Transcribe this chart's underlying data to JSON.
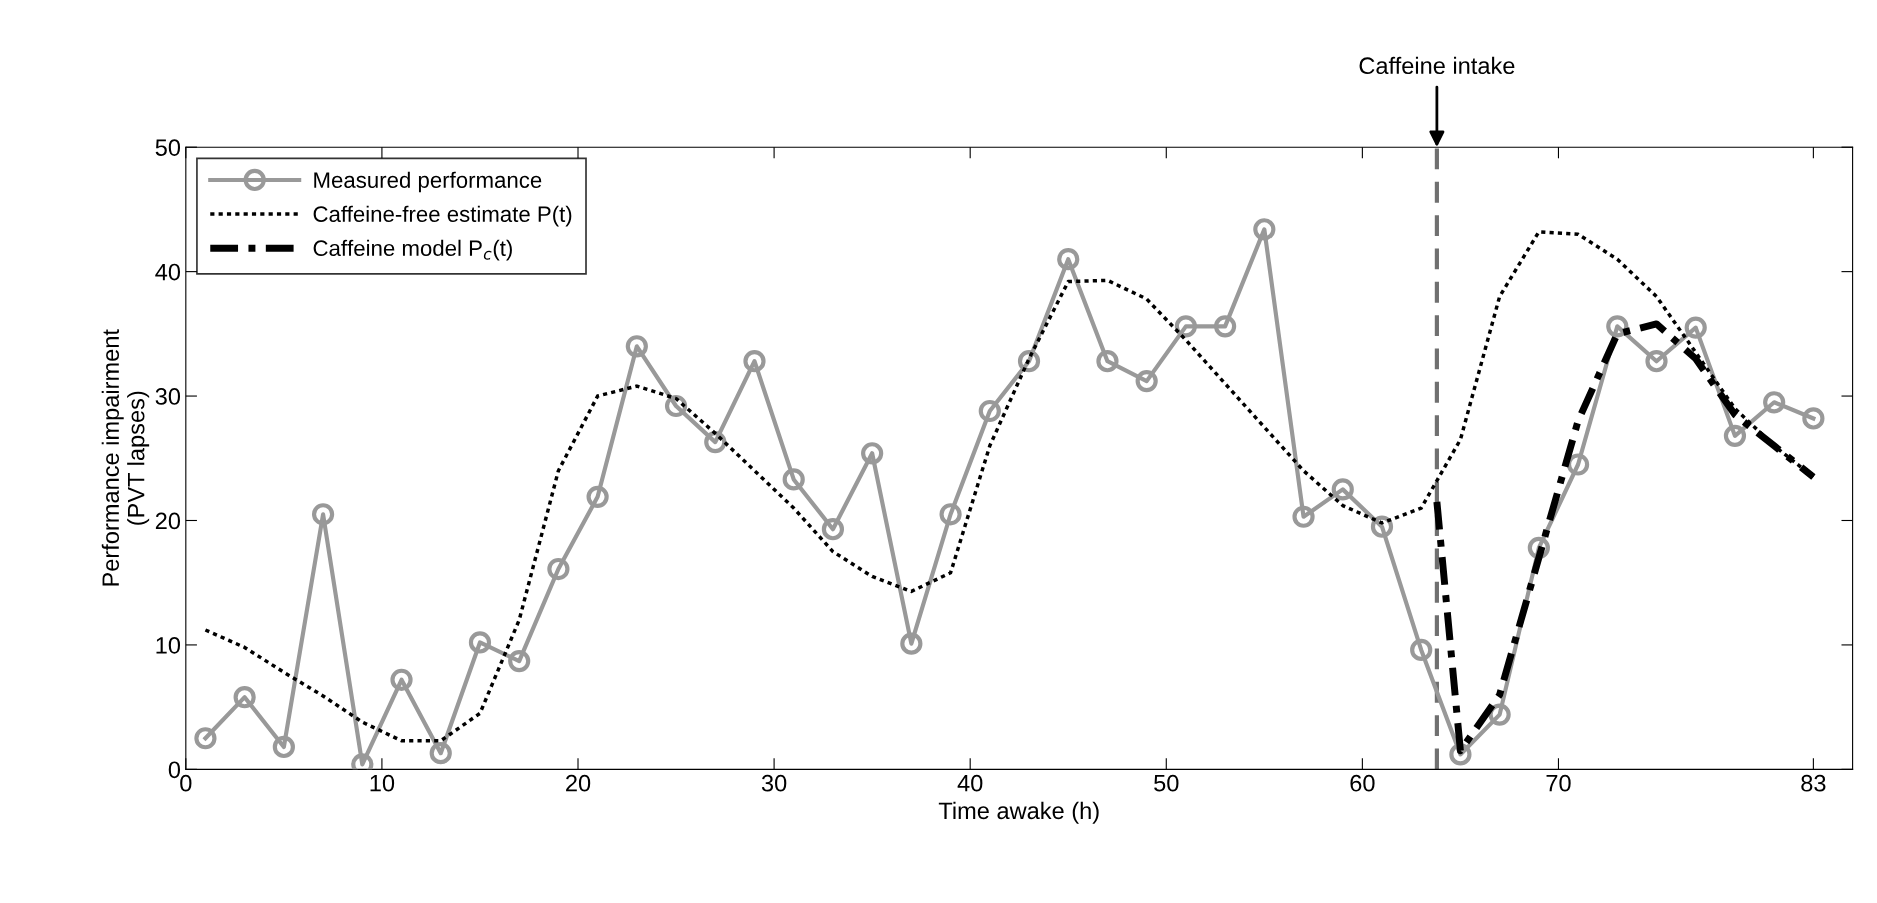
{
  "chart_data": {
    "type": "line",
    "xlabel": "Time awake (h)",
    "ylabel": "Performance impairment\n(PVT lapses)",
    "xlim": [
      0,
      85
    ],
    "xticks": [
      0,
      10,
      20,
      30,
      40,
      50,
      60,
      70,
      83
    ],
    "ylim": [
      0,
      50
    ],
    "yticks": [
      0,
      10,
      20,
      30,
      40,
      50
    ],
    "grid": false,
    "legend": "top left",
    "series": [
      {
        "name": "Measured performance",
        "color": "#999999",
        "marker": "circle",
        "line_style": "solid",
        "x": [
          1,
          3,
          5,
          7,
          9,
          11,
          13,
          15,
          17,
          19,
          21,
          23,
          25,
          27,
          29,
          31,
          33,
          35,
          37,
          39,
          41,
          43,
          45,
          47,
          49,
          51,
          53,
          55,
          57,
          59,
          61,
          63,
          65,
          67,
          69,
          71,
          73,
          75,
          77,
          79,
          81,
          83
        ],
        "values": [
          2.5,
          5.8,
          1.8,
          20.5,
          0.4,
          7.2,
          1.3,
          10.2,
          8.7,
          16.1,
          21.9,
          34,
          29.2,
          26.3,
          32.8,
          23.3,
          19.3,
          25.4,
          10.1,
          20.5,
          28.8,
          32.8,
          41,
          32.8,
          31.2,
          35.6,
          35.6,
          43.4,
          20.3,
          22.5,
          19.5,
          9.6,
          1.2,
          4.4,
          17.8,
          24.5,
          35.6,
          32.8,
          35.5,
          26.8,
          29.5,
          28.2
        ]
      },
      {
        "name": "Caffeine-free estimate P(t)",
        "color": "#000000",
        "marker": "none",
        "line_style": "dotted",
        "x": [
          1,
          3,
          5,
          7,
          9,
          11,
          13,
          15,
          17,
          19,
          21,
          23,
          25,
          27,
          29,
          31,
          33,
          35,
          37,
          39,
          41,
          43,
          45,
          47,
          49,
          51,
          53,
          55,
          57,
          59,
          61,
          63,
          65,
          67,
          69,
          71,
          73,
          75,
          77,
          79,
          81,
          83
        ],
        "values": [
          11.2,
          9.8,
          7.8,
          5.9,
          3.8,
          2.3,
          2.3,
          4.5,
          12,
          24,
          30,
          30.8,
          29.8,
          27,
          24,
          21,
          17.5,
          15.5,
          14.3,
          15.8,
          26,
          33,
          39.2,
          39.3,
          37.8,
          34.5,
          31,
          27.5,
          24,
          21.2,
          19.8,
          21,
          26.5,
          38,
          43.2,
          43,
          41,
          38,
          33.5,
          29,
          26,
          23.5
        ]
      },
      {
        "name": "Caffeine model P$_{c}$(t)",
        "color": "#000000",
        "marker": "none",
        "line_style": "dashdot",
        "x": [
          63.8,
          65,
          67,
          69,
          71,
          73,
          75,
          77,
          79,
          81,
          83
        ],
        "values": [
          21.5,
          1.5,
          6,
          17,
          28,
          35,
          35.8,
          33,
          28.5,
          26,
          23.5
        ]
      }
    ],
    "ref_lines": [
      {
        "axis": "x",
        "value": 63.8,
        "label": "Caffeine intake",
        "color": "#707070",
        "line_style": "dashed"
      }
    ]
  }
}
